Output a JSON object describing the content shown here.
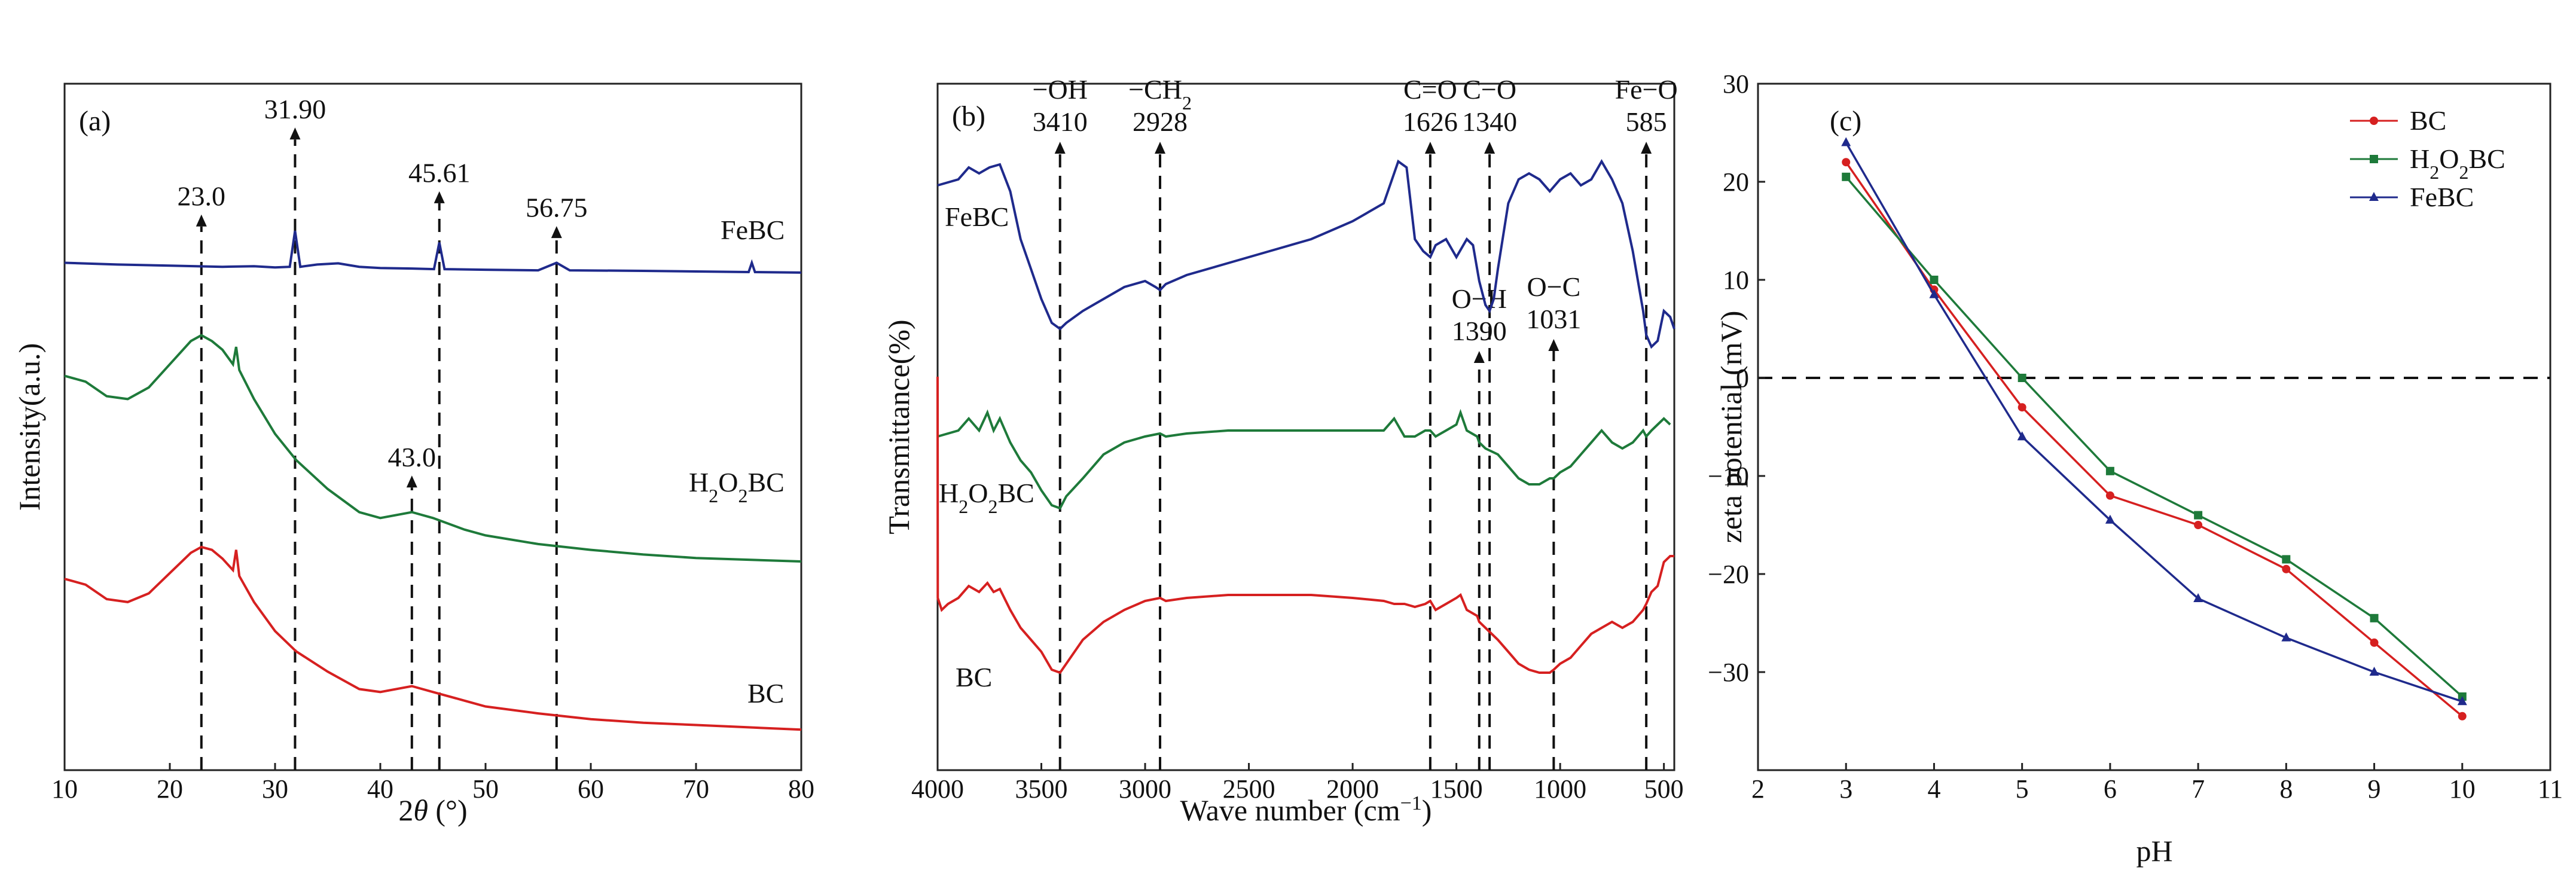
{
  "chart_data": [
    {
      "panel": "(a)",
      "type": "line",
      "xlabel_prefix": "2",
      "xlabel_theta": "θ",
      "xlabel_suffix": " (°)",
      "ylabel": "Intensity(a.u.)",
      "xlim": [
        10,
        80
      ],
      "ylim": [
        0,
        100
      ],
      "xticks": [
        "10",
        "20",
        "30",
        "40",
        "50",
        "60",
        "70",
        "80"
      ],
      "series": [
        {
          "name": "FeBC",
          "label": "FeBC",
          "color": "#1f2a8c",
          "x": [
            10,
            15,
            20,
            25,
            28,
            30,
            31.4,
            31.9,
            32.4,
            34,
            36,
            38,
            40,
            43,
            45.1,
            45.61,
            46.1,
            50,
            55,
            56.75,
            58,
            65,
            70,
            75,
            75.3,
            75.6,
            80
          ],
          "y": [
            81.5,
            81.2,
            81,
            80.8,
            80.9,
            80.7,
            80.8,
            87,
            80.8,
            81.2,
            81.4,
            80.8,
            80.6,
            80.5,
            80.4,
            85,
            80.4,
            80.3,
            80.2,
            81.5,
            80.2,
            80.1,
            80,
            79.9,
            81.5,
            79.9,
            79.8
          ]
        },
        {
          "name": "H2O2BC",
          "label_main": "H",
          "label_sub1": "2",
          "label_mid": "O",
          "label_sub2": "2",
          "label_tail": "BC",
          "color": "#1e7a3a",
          "x": [
            10,
            12,
            14,
            16,
            18,
            20,
            22,
            23,
            24,
            25,
            26,
            26.3,
            26.6,
            28,
            30,
            32,
            35,
            38,
            40,
            43,
            45,
            48,
            50,
            55,
            60,
            65,
            70,
            75,
            80
          ],
          "y": [
            62,
            61,
            58.5,
            58,
            60,
            64,
            68,
            69,
            68,
            66.5,
            64,
            67,
            63,
            58,
            52,
            47.5,
            42.5,
            38.5,
            37.5,
            38.5,
            37.5,
            35.5,
            34.5,
            33,
            32,
            31.2,
            30.6,
            30.3,
            30
          ]
        },
        {
          "name": "BC",
          "label": "BC",
          "color": "#d62020",
          "x": [
            10,
            12,
            14,
            16,
            18,
            20,
            22,
            23,
            24,
            25,
            26,
            26.3,
            26.6,
            28,
            30,
            32,
            35,
            38,
            40,
            43,
            45,
            48,
            50,
            55,
            60,
            65,
            70,
            75,
            80
          ],
          "y": [
            27,
            26,
            23.5,
            23,
            24.5,
            28,
            31.5,
            32.5,
            32,
            30.5,
            28.5,
            32,
            27.5,
            23,
            18,
            14.5,
            11,
            8,
            7.5,
            8.5,
            7.5,
            6,
            5,
            3.8,
            2.8,
            2.2,
            1.8,
            1.4,
            1
          ]
        }
      ],
      "annotations": [
        {
          "x": 23.0,
          "label": "23.0",
          "y_text": 91,
          "y_arrow": 89,
          "y_end": 0
        },
        {
          "x": 31.9,
          "label": "31.90",
          "y_text": 106,
          "y_arrow": 104,
          "y_end": 0
        },
        {
          "x": 45.61,
          "label": "45.61",
          "y_text": 95,
          "y_arrow": 93,
          "y_end": 0
        },
        {
          "x": 56.75,
          "label": "56.75",
          "y_text": 89,
          "y_arrow": 87,
          "y_end": 0
        },
        {
          "x": 43.0,
          "label": "43.0",
          "y_text": 46,
          "y_arrow": 44,
          "y_end": 0
        }
      ]
    },
    {
      "panel": "(b)",
      "type": "line",
      "xlabel_main": "Wave number (cm",
      "xlabel_sup": "−1",
      "xlabel_tail": ")",
      "ylabel": "Transmittance(%)",
      "xlim": [
        4000,
        450
      ],
      "ylim": [
        0,
        100
      ],
      "xticks": [
        "4000",
        "3500",
        "3000",
        "2500",
        "2000",
        "1500",
        "1000",
        "500"
      ],
      "xtick_values": [
        4000,
        3500,
        3000,
        2500,
        2000,
        1500,
        1000,
        500
      ],
      "series": [
        {
          "name": "FeBC",
          "label": "FeBC",
          "color": "#1f2a8c",
          "x": [
            4000,
            3900,
            3850,
            3800,
            3750,
            3700,
            3650,
            3600,
            3550,
            3500,
            3450,
            3410,
            3380,
            3300,
            3200,
            3100,
            3000,
            2950,
            2928,
            2900,
            2800,
            2600,
            2400,
            2200,
            2000,
            1850,
            1780,
            1740,
            1700,
            1660,
            1626,
            1600,
            1550,
            1500,
            1450,
            1420,
            1390,
            1360,
            1340,
            1320,
            1300,
            1250,
            1200,
            1150,
            1100,
            1050,
            1000,
            950,
            900,
            850,
            800,
            750,
            700,
            650,
            600,
            585,
            560,
            530,
            500,
            470,
            450
          ],
          "y": [
            89,
            90,
            92,
            91,
            92,
            92.5,
            88,
            80,
            75,
            70,
            66,
            65,
            66,
            68,
            70,
            72,
            73,
            72,
            71.5,
            72.5,
            74,
            76,
            78,
            80,
            83,
            86,
            93,
            92,
            80,
            78,
            77,
            79,
            80,
            77,
            80,
            79,
            73,
            69,
            68,
            70,
            75,
            86,
            90,
            91,
            90,
            88,
            90,
            91,
            89,
            90,
            93,
            90,
            86,
            78,
            68,
            64,
            62,
            63,
            68,
            67,
            65
          ]
        },
        {
          "name": "H2O2BC",
          "label_main": "H",
          "label_sub1": "2",
          "label_mid": "O",
          "label_sub2": "2",
          "label_tail": "BC",
          "color": "#1e7a3a",
          "x": [
            4000,
            3900,
            3850,
            3800,
            3760,
            3730,
            3700,
            3650,
            3600,
            3550,
            3500,
            3450,
            3410,
            3380,
            3300,
            3200,
            3100,
            3000,
            2928,
            2900,
            2800,
            2600,
            2400,
            2200,
            2000,
            1850,
            1800,
            1750,
            1700,
            1650,
            1626,
            1600,
            1550,
            1500,
            1480,
            1450,
            1400,
            1390,
            1360,
            1300,
            1250,
            1200,
            1150,
            1100,
            1050,
            1031,
            1000,
            950,
            900,
            850,
            800,
            750,
            700,
            650,
            600,
            585,
            560,
            530,
            500,
            470
          ],
          "y": [
            47,
            48,
            50,
            48,
            51,
            48,
            50,
            46,
            43,
            41,
            38,
            35.5,
            35,
            37,
            40,
            44,
            46,
            47,
            47.5,
            47,
            47.5,
            48,
            48,
            48,
            48,
            48,
            50,
            47,
            47,
            48,
            48,
            47,
            48,
            49,
            51,
            48,
            47,
            46,
            45,
            44,
            42,
            40,
            39,
            39,
            40,
            40,
            41,
            42,
            44,
            46,
            48,
            46,
            45,
            46,
            48,
            47,
            48,
            49,
            50,
            49
          ]
        },
        {
          "name": "BC",
          "label": "BC",
          "color": "#d62020",
          "x": [
            4000,
            3999,
            3980,
            3950,
            3900,
            3850,
            3800,
            3760,
            3730,
            3700,
            3650,
            3600,
            3550,
            3500,
            3450,
            3410,
            3380,
            3300,
            3200,
            3100,
            3000,
            2928,
            2900,
            2800,
            2600,
            2400,
            2200,
            2000,
            1850,
            1800,
            1750,
            1700,
            1650,
            1626,
            1600,
            1550,
            1500,
            1480,
            1450,
            1400,
            1390,
            1360,
            1300,
            1250,
            1200,
            1150,
            1100,
            1050,
            1031,
            1000,
            950,
            900,
            850,
            800,
            750,
            700,
            650,
            600,
            585,
            560,
            530,
            500,
            470,
            450
          ],
          "y": [
            57,
            20,
            18,
            19,
            20,
            22,
            21,
            22.5,
            21,
            21.5,
            18,
            15,
            13,
            11,
            8,
            7.5,
            9,
            13,
            16,
            18,
            19.5,
            20,
            19.5,
            20,
            20.5,
            20.5,
            20.5,
            20,
            19.5,
            19,
            19,
            18.5,
            19,
            19.5,
            18,
            19,
            20,
            20.5,
            18,
            17,
            16,
            15,
            13,
            11,
            9,
            8,
            7.5,
            7.5,
            8,
            9,
            10,
            12,
            14,
            15,
            16,
            15,
            16,
            18,
            19,
            21,
            22,
            26,
            27,
            27
          ]
        }
      ],
      "annotations": [
        {
          "x": 3410,
          "label_a": "−OH",
          "label_b": "3410",
          "y_arrow": 95.5,
          "y_end": 0,
          "row": "top"
        },
        {
          "x": 2928,
          "label_a": "−CH",
          "label_a_sub": "2",
          "label_b": "2928",
          "y_arrow": 95.5,
          "y_end": 0,
          "row": "top"
        },
        {
          "x": 1626,
          "label_a": "C=O",
          "label_b": "1626",
          "y_arrow": 95.5,
          "y_end": 0,
          "row": "top"
        },
        {
          "x": 1340,
          "label_a": "C−O",
          "label_b": "1340",
          "y_arrow": 95.5,
          "y_end": 0,
          "row": "top"
        },
        {
          "x": 585,
          "label_a": "Fe−O",
          "label_b": "585",
          "y_arrow": 95.5,
          "y_end": 0,
          "row": "top"
        },
        {
          "x": 1390,
          "label_a": "O−H",
          "label_b": "1390",
          "y_arrow": 60.5,
          "y_end": 0,
          "row": "mid"
        },
        {
          "x": 1031,
          "label_a": "O−C",
          "label_b": "1031",
          "y_arrow": 62.5,
          "y_end": 0,
          "row": "mid"
        }
      ]
    },
    {
      "panel": "(c)",
      "type": "line",
      "xlabel": "pH",
      "ylabel": "zeta potential (mV)",
      "xlim": [
        2,
        11
      ],
      "ylim": [
        -40,
        30
      ],
      "xticks": [
        "2",
        "3",
        "4",
        "5",
        "6",
        "7",
        "8",
        "9",
        "10",
        "11"
      ],
      "xtick_values": [
        2,
        3,
        4,
        5,
        6,
        7,
        8,
        9,
        10,
        11
      ],
      "yticks": [
        "30",
        "20",
        "10",
        "0",
        "−10",
        "−20",
        "−30"
      ],
      "ytick_values": [
        30,
        20,
        10,
        0,
        -10,
        -20,
        -30
      ],
      "zero_line": 0,
      "legend_position": "top-right",
      "series": [
        {
          "name": "BC",
          "label": "BC",
          "color": "#d62020",
          "marker": "circle",
          "x": [
            3,
            4,
            5,
            6,
            7,
            8,
            9,
            10
          ],
          "y": [
            22,
            9,
            -3,
            -12,
            -15,
            -19.5,
            -27,
            -34.5
          ]
        },
        {
          "name": "H2O2BC",
          "label_main": "H",
          "label_sub1": "2",
          "label_mid": "O",
          "label_sub2": "2",
          "label_tail": "BC",
          "color": "#1e7a3a",
          "marker": "square",
          "x": [
            3,
            4,
            5,
            6,
            7,
            8,
            9,
            10
          ],
          "y": [
            20.5,
            10,
            0,
            -9.5,
            -14,
            -18.5,
            -24.5,
            -32.5
          ]
        },
        {
          "name": "FeBC",
          "label": "FeBC",
          "color": "#1f2a8c",
          "marker": "triangle",
          "x": [
            3,
            4,
            5,
            6,
            7,
            8,
            9,
            10
          ],
          "y": [
            24,
            8.5,
            -6,
            -14.5,
            -22.5,
            -26.5,
            -30,
            -33
          ]
        }
      ]
    }
  ]
}
